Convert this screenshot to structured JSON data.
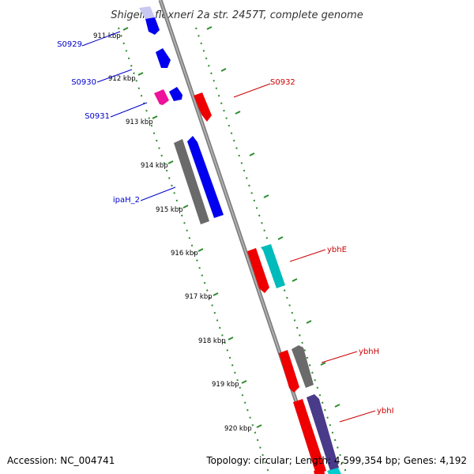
{
  "title": "Shigella flexneri 2a str. 2457T, complete genome",
  "footer": {
    "accession": "Accession: NC_004741",
    "topology": "Topology: circular; Length: 4,599,354 bp; Genes: 4,192"
  },
  "colors": {
    "backbone": "#8c8c8c",
    "ticks": "#2e8b2e",
    "forward_label": "#0000cc",
    "reverse_label": "#cc0000"
  },
  "ticks": [
    "911 kbp",
    "912 kbp",
    "913 kbp",
    "914 kbp",
    "915 kbp",
    "916 kbp",
    "917 kbp",
    "918 kbp",
    "919 kbp",
    "920 kbp"
  ],
  "gene_labels": [
    {
      "name": "S0929",
      "strand": "forward"
    },
    {
      "name": "S0930",
      "strand": "forward"
    },
    {
      "name": "S0931",
      "strand": "forward"
    },
    {
      "name": "ipaH_2",
      "strand": "forward"
    },
    {
      "name": "S0932",
      "strand": "reverse"
    },
    {
      "name": "ybhE",
      "strand": "reverse"
    },
    {
      "name": "ybhH",
      "strand": "reverse"
    },
    {
      "name": "ybhI",
      "strand": "reverse"
    }
  ]
}
